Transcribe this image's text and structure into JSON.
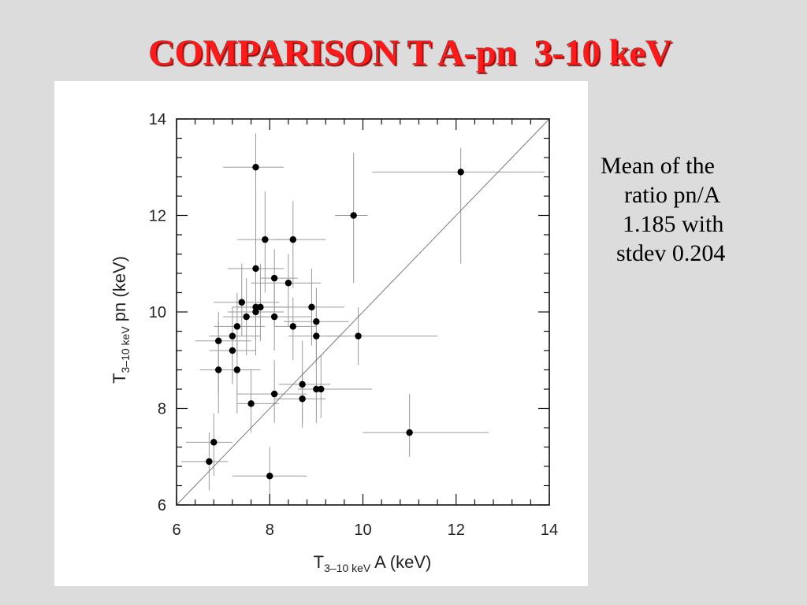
{
  "slide": {
    "title": "COMPARISON T A-pn  3-10 keV",
    "note_lines": [
      "Mean of the",
      "ratio pn/A",
      "1.185 with",
      "stdev 0.204"
    ]
  },
  "colors": {
    "title": "#ff1a1a",
    "background": "#dcdcdc",
    "panel": "#ffffff",
    "points": "#000000",
    "error_bars": "#9a9a9a"
  },
  "chart_data": {
    "type": "scatter",
    "title": "",
    "xlabel": {
      "base": "T",
      "sub": "3–10 keV",
      "rest": " A (keV)"
    },
    "ylabel": {
      "base": "T",
      "sub": "3–10 keV",
      "rest": " pn (keV)"
    },
    "xlim": [
      6,
      14
    ],
    "ylim": [
      6,
      14
    ],
    "xticks": [
      "6",
      "8",
      "10",
      "12",
      "14"
    ],
    "yticks": [
      "6",
      "8",
      "10",
      "12",
      "14"
    ],
    "reference_line": {
      "label": "y = x",
      "from": [
        6,
        6
      ],
      "to": [
        14,
        14
      ]
    },
    "grid": false,
    "points": [
      {
        "x": 7.7,
        "y": 13.0,
        "xerr": [
          0.7,
          0.6
        ],
        "yerr": [
          2.0,
          0.7
        ]
      },
      {
        "x": 12.1,
        "y": 12.9,
        "xerr": [
          1.9,
          1.8
        ],
        "yerr": [
          1.9,
          0.5
        ]
      },
      {
        "x": 9.8,
        "y": 12.0,
        "xerr": [
          0.4,
          0.3
        ],
        "yerr": [
          1.4,
          1.3
        ]
      },
      {
        "x": 7.9,
        "y": 11.5,
        "xerr": [
          0.6,
          0.6
        ],
        "yerr": [
          1.1,
          1.0
        ]
      },
      {
        "x": 8.5,
        "y": 11.5,
        "xerr": [
          0.4,
          0.7
        ],
        "yerr": [
          1.0,
          0.8
        ]
      },
      {
        "x": 7.7,
        "y": 10.9,
        "xerr": [
          0.6,
          0.6
        ],
        "yerr": [
          1.3,
          1.7
        ]
      },
      {
        "x": 8.1,
        "y": 10.7,
        "xerr": [
          0.3,
          0.5
        ],
        "yerr": [
          1.0,
          0.6
        ]
      },
      {
        "x": 8.4,
        "y": 10.6,
        "xerr": [
          0.8,
          0.7
        ],
        "yerr": [
          0.9,
          0.6
        ]
      },
      {
        "x": 7.4,
        "y": 10.2,
        "xerr": [
          0.6,
          0.8
        ],
        "yerr": [
          0.7,
          0.8
        ]
      },
      {
        "x": 7.7,
        "y": 10.1,
        "xerr": [
          0.5,
          0.5
        ],
        "yerr": [
          0.8,
          0.9
        ]
      },
      {
        "x": 7.8,
        "y": 10.1,
        "xerr": [
          0.5,
          0.6
        ],
        "yerr": [
          0.7,
          0.9
        ]
      },
      {
        "x": 8.9,
        "y": 10.1,
        "xerr": [
          0.7,
          0.7
        ],
        "yerr": [
          0.8,
          0.8
        ]
      },
      {
        "x": 7.7,
        "y": 10.0,
        "xerr": [
          0.6,
          0.6
        ],
        "yerr": [
          0.9,
          1.1
        ]
      },
      {
        "x": 7.5,
        "y": 9.9,
        "xerr": [
          0.5,
          0.4
        ],
        "yerr": [
          0.8,
          0.8
        ]
      },
      {
        "x": 8.1,
        "y": 9.9,
        "xerr": [
          0.6,
          0.8
        ],
        "yerr": [
          0.7,
          0.8
        ]
      },
      {
        "x": 9.0,
        "y": 9.8,
        "xerr": [
          0.7,
          0.7
        ],
        "yerr": [
          0.8,
          0.7
        ]
      },
      {
        "x": 7.3,
        "y": 9.7,
        "xerr": [
          0.5,
          0.6
        ],
        "yerr": [
          0.6,
          0.7
        ]
      },
      {
        "x": 8.5,
        "y": 9.7,
        "xerr": [
          0.4,
          0.5
        ],
        "yerr": [
          0.7,
          0.6
        ]
      },
      {
        "x": 7.2,
        "y": 9.5,
        "xerr": [
          0.5,
          0.6
        ],
        "yerr": [
          0.9,
          0.6
        ]
      },
      {
        "x": 9.0,
        "y": 9.5,
        "xerr": [
          0.6,
          0.7
        ],
        "yerr": [
          0.6,
          0.5
        ]
      },
      {
        "x": 9.9,
        "y": 9.5,
        "xerr": [
          0.7,
          1.7
        ],
        "yerr": [
          0.6,
          0.6
        ]
      },
      {
        "x": 6.9,
        "y": 9.4,
        "xerr": [
          0.5,
          0.7
        ],
        "yerr": [
          1.1,
          0.6
        ]
      },
      {
        "x": 7.2,
        "y": 9.2,
        "xerr": [
          0.5,
          0.5
        ],
        "yerr": [
          0.7,
          0.6
        ]
      },
      {
        "x": 6.9,
        "y": 8.8,
        "xerr": [
          0.4,
          0.6
        ],
        "yerr": [
          0.9,
          1.0
        ]
      },
      {
        "x": 7.3,
        "y": 8.8,
        "xerr": [
          0.4,
          0.5
        ],
        "yerr": [
          0.9,
          0.7
        ]
      },
      {
        "x": 8.7,
        "y": 8.5,
        "xerr": [
          0.5,
          0.6
        ],
        "yerr": [
          0.8,
          0.9
        ]
      },
      {
        "x": 9.0,
        "y": 8.4,
        "xerr": [
          0.4,
          0.4
        ],
        "yerr": [
          0.7,
          0.6
        ]
      },
      {
        "x": 9.1,
        "y": 8.4,
        "xerr": [
          0.5,
          1.1
        ],
        "yerr": [
          0.6,
          0.7
        ]
      },
      {
        "x": 8.1,
        "y": 8.3,
        "xerr": [
          0.8,
          0.7
        ],
        "yerr": [
          0.6,
          0.7
        ]
      },
      {
        "x": 8.7,
        "y": 8.2,
        "xerr": [
          0.6,
          0.5
        ],
        "yerr": [
          0.6,
          0.6
        ]
      },
      {
        "x": 7.6,
        "y": 8.1,
        "xerr": [
          0.3,
          0.6
        ],
        "yerr": [
          0.6,
          0.7
        ]
      },
      {
        "x": 11.0,
        "y": 7.5,
        "xerr": [
          1.0,
          1.7
        ],
        "yerr": [
          0.5,
          0.8
        ]
      },
      {
        "x": 6.8,
        "y": 7.3,
        "xerr": [
          0.6,
          0.4
        ],
        "yerr": [
          0.7,
          0.6
        ]
      },
      {
        "x": 6.7,
        "y": 6.9,
        "xerr": [
          0.6,
          0.4
        ],
        "yerr": [
          0.6,
          0.6
        ]
      },
      {
        "x": 8.0,
        "y": 6.6,
        "xerr": [
          0.8,
          0.8
        ],
        "yerr": [
          0.6,
          0.6
        ]
      }
    ]
  }
}
